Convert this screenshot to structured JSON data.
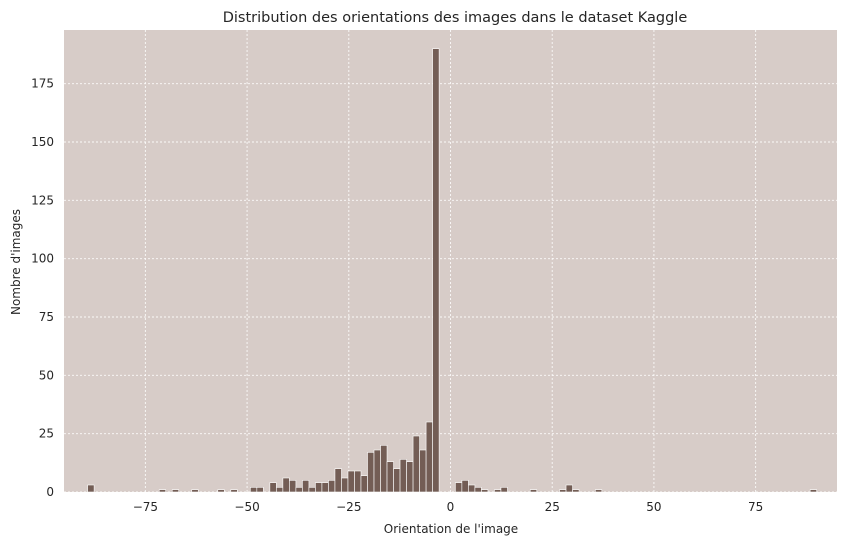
{
  "chart_data": {
    "type": "bar",
    "title": "Distribution des orientations des images dans le dataset Kaggle",
    "xlabel": "Orientation de l'image",
    "ylabel": "Nombre d'images",
    "xlim": [
      -95,
      95
    ],
    "ylim": [
      0,
      198
    ],
    "xticks": [
      -75,
      -50,
      -25,
      0,
      25,
      50,
      75
    ],
    "yticks": [
      0,
      25,
      50,
      75,
      100,
      125,
      150,
      175
    ],
    "xtick_labels": [
      "−75",
      "−50",
      "−25",
      "0",
      "25",
      "50",
      "75"
    ],
    "ytick_labels": [
      "0",
      "25",
      "50",
      "75",
      "100",
      "125",
      "150",
      "175"
    ],
    "bin_width": 1.6,
    "grid": true,
    "background_color": "#d7ccc8",
    "bar_color": "#735d55",
    "bins": [
      {
        "x": -89.2,
        "count": 3
      },
      {
        "x": -71.6,
        "count": 1
      },
      {
        "x": -68.4,
        "count": 1
      },
      {
        "x": -63.6,
        "count": 1
      },
      {
        "x": -57.2,
        "count": 1
      },
      {
        "x": -54.0,
        "count": 1
      },
      {
        "x": -49.2,
        "count": 2
      },
      {
        "x": -47.6,
        "count": 2
      },
      {
        "x": -44.4,
        "count": 4
      },
      {
        "x": -42.8,
        "count": 2
      },
      {
        "x": -41.2,
        "count": 6
      },
      {
        "x": -39.6,
        "count": 5
      },
      {
        "x": -38.0,
        "count": 2
      },
      {
        "x": -36.4,
        "count": 5
      },
      {
        "x": -34.8,
        "count": 2
      },
      {
        "x": -33.2,
        "count": 4
      },
      {
        "x": -31.6,
        "count": 4
      },
      {
        "x": -30.0,
        "count": 5
      },
      {
        "x": -28.4,
        "count": 10
      },
      {
        "x": -26.8,
        "count": 6
      },
      {
        "x": -25.2,
        "count": 9
      },
      {
        "x": -23.6,
        "count": 9
      },
      {
        "x": -22.0,
        "count": 7
      },
      {
        "x": -20.4,
        "count": 17
      },
      {
        "x": -18.8,
        "count": 18
      },
      {
        "x": -17.2,
        "count": 20
      },
      {
        "x": -15.6,
        "count": 13
      },
      {
        "x": -14.0,
        "count": 10
      },
      {
        "x": -12.4,
        "count": 14
      },
      {
        "x": -10.8,
        "count": 13
      },
      {
        "x": -9.2,
        "count": 24
      },
      {
        "x": -7.6,
        "count": 18
      },
      {
        "x": -6.0,
        "count": 30
      },
      {
        "x": -4.4,
        "count": 190
      },
      {
        "x": 1.2,
        "count": 4
      },
      {
        "x": 2.8,
        "count": 5
      },
      {
        "x": 4.4,
        "count": 3
      },
      {
        "x": 6.0,
        "count": 2
      },
      {
        "x": 7.6,
        "count": 1
      },
      {
        "x": 10.8,
        "count": 1
      },
      {
        "x": 12.4,
        "count": 2
      },
      {
        "x": 19.6,
        "count": 1
      },
      {
        "x": 26.8,
        "count": 1
      },
      {
        "x": 28.4,
        "count": 3
      },
      {
        "x": 30.0,
        "count": 1
      },
      {
        "x": 35.6,
        "count": 1
      },
      {
        "x": 88.4,
        "count": 1
      }
    ]
  }
}
